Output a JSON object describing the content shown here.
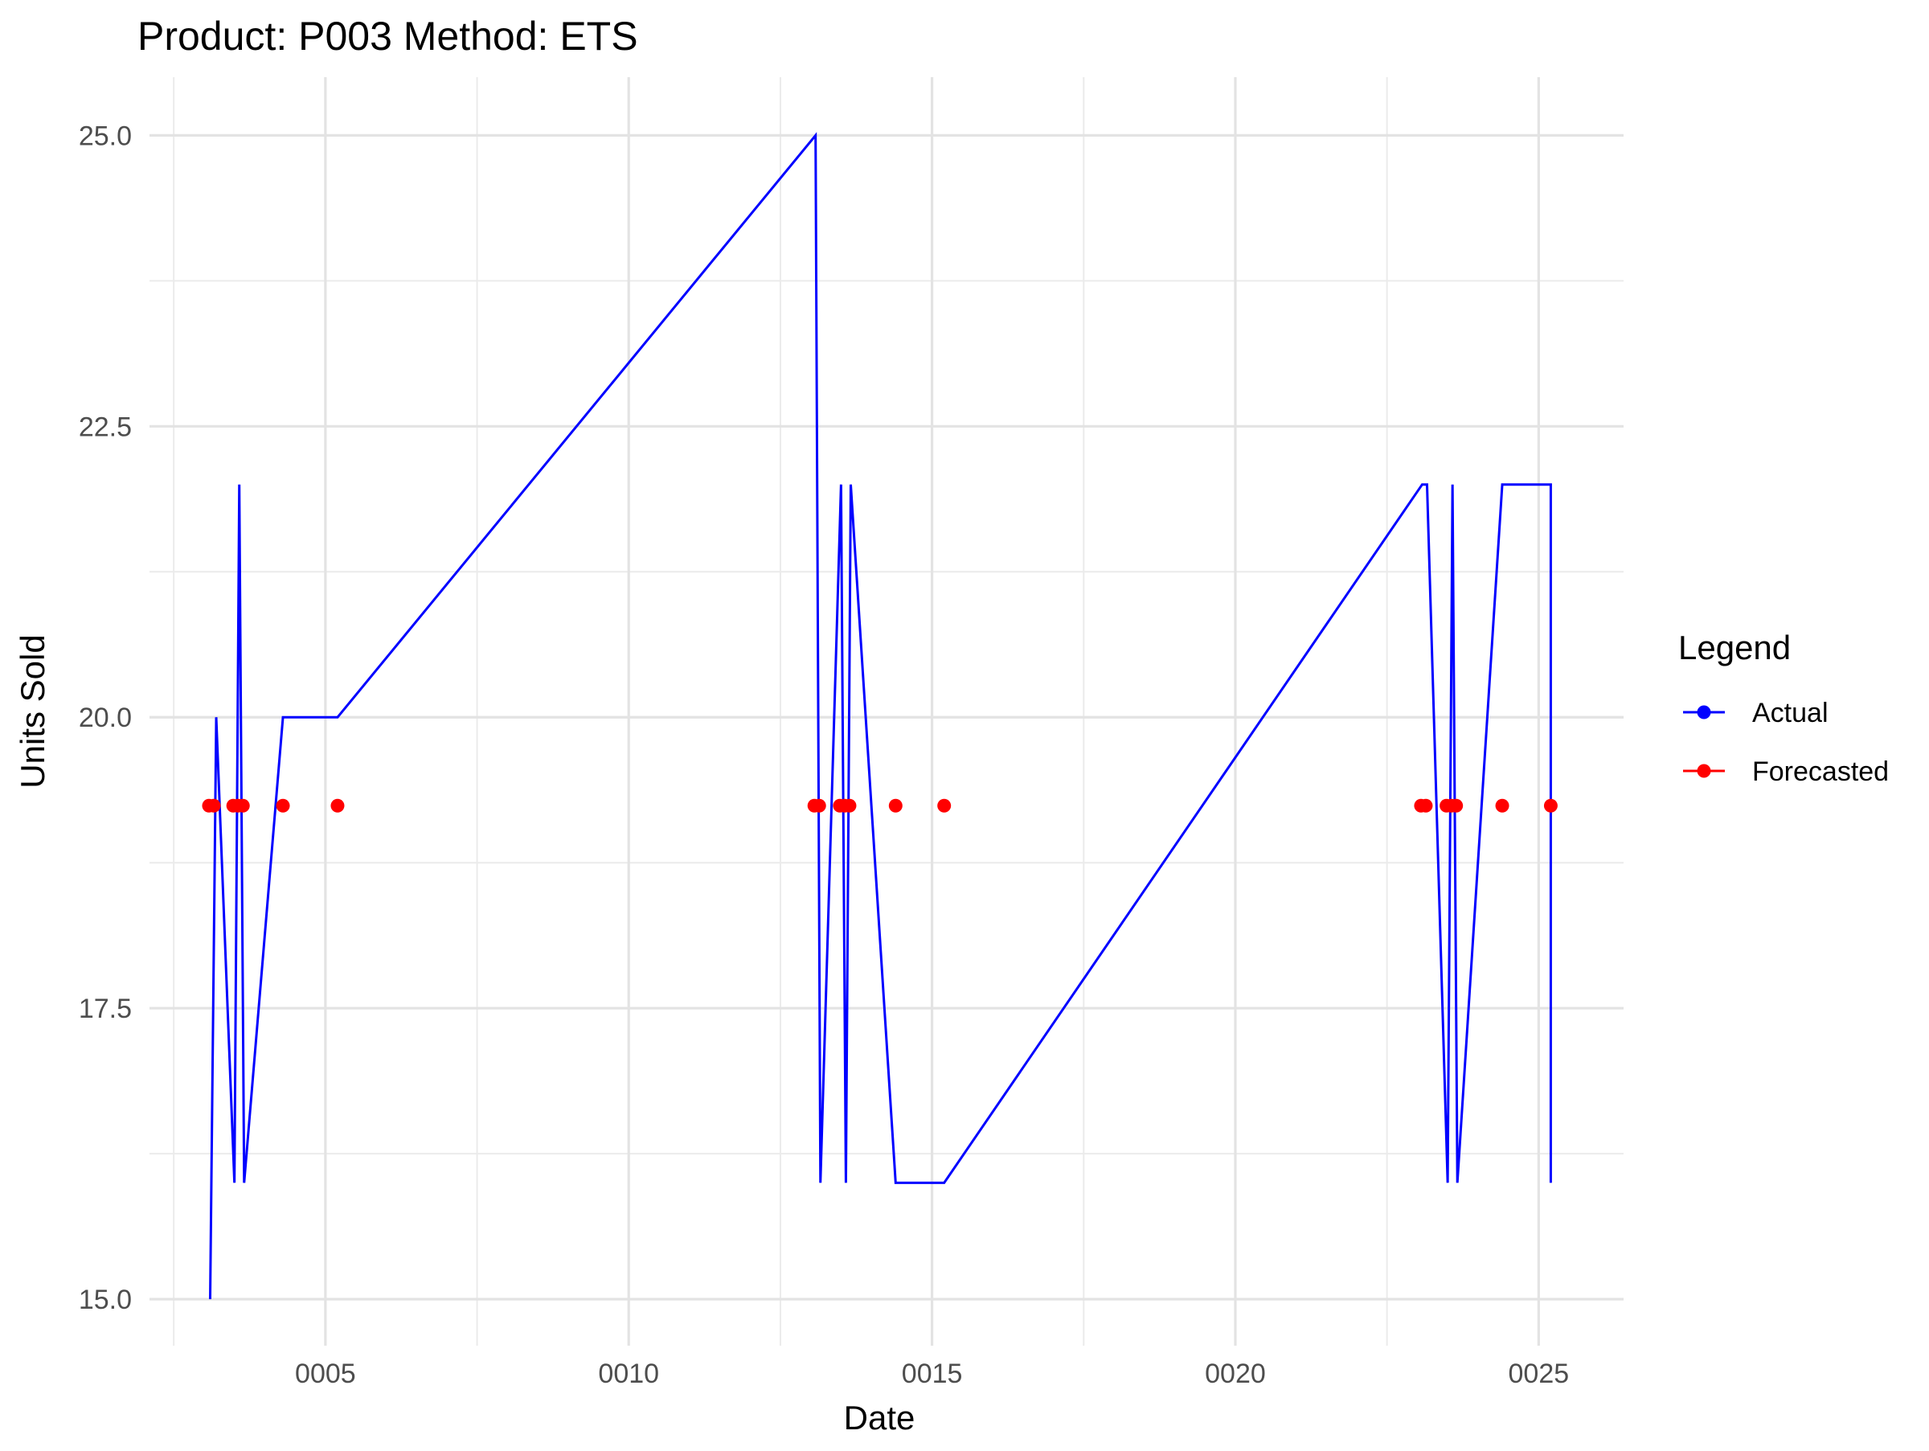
{
  "chart_data": {
    "type": "line",
    "title": "Product: P003 Method: ETS",
    "xlabel": "Date",
    "ylabel": "Units Sold",
    "x_ticks": [
      {
        "value": 5,
        "label": "0005"
      },
      {
        "value": 10,
        "label": "0010"
      },
      {
        "value": 15,
        "label": "0015"
      },
      {
        "value": 20,
        "label": "0020"
      },
      {
        "value": 25,
        "label": "0025"
      }
    ],
    "y_ticks": [
      {
        "value": 15.0,
        "label": "15.0"
      },
      {
        "value": 17.5,
        "label": "17.5"
      },
      {
        "value": 20.0,
        "label": "20.0"
      },
      {
        "value": 22.5,
        "label": "22.5"
      },
      {
        "value": 25.0,
        "label": "25.0"
      }
    ],
    "xlim": [
      2.1,
      26.4
    ],
    "ylim": [
      14.6,
      25.5
    ],
    "grid": true,
    "legend": {
      "title": "Legend",
      "position": "right"
    },
    "series": [
      {
        "name": "Actual",
        "color": "#0000ff",
        "geom": "line",
        "x": [
          3.1,
          3.2,
          3.5,
          3.58,
          3.66,
          4.3,
          5.2,
          13.08,
          13.16,
          13.5,
          13.58,
          13.66,
          14.4,
          15.2,
          23.08,
          23.16,
          23.5,
          23.58,
          23.66,
          24.4,
          25.2,
          25.2
        ],
        "y": [
          15,
          20,
          16,
          22,
          16,
          20,
          20,
          25,
          16,
          22,
          16,
          22,
          16,
          16,
          22,
          22,
          16,
          22,
          16,
          22,
          22,
          16
        ]
      },
      {
        "name": "Forecasted",
        "color": "#ff0000",
        "geom": "point",
        "x": [
          3.08,
          3.16,
          3.48,
          3.56,
          3.64,
          4.3,
          5.2,
          13.06,
          13.14,
          13.48,
          13.56,
          13.64,
          14.4,
          15.2,
          23.06,
          23.14,
          23.48,
          23.56,
          23.64,
          24.4,
          25.2
        ],
        "y": [
          19.24,
          19.24,
          19.24,
          19.24,
          19.24,
          19.24,
          19.24,
          19.24,
          19.24,
          19.24,
          19.24,
          19.24,
          19.24,
          19.24,
          19.24,
          19.24,
          19.24,
          19.24,
          19.24,
          19.24,
          19.24
        ]
      }
    ]
  }
}
